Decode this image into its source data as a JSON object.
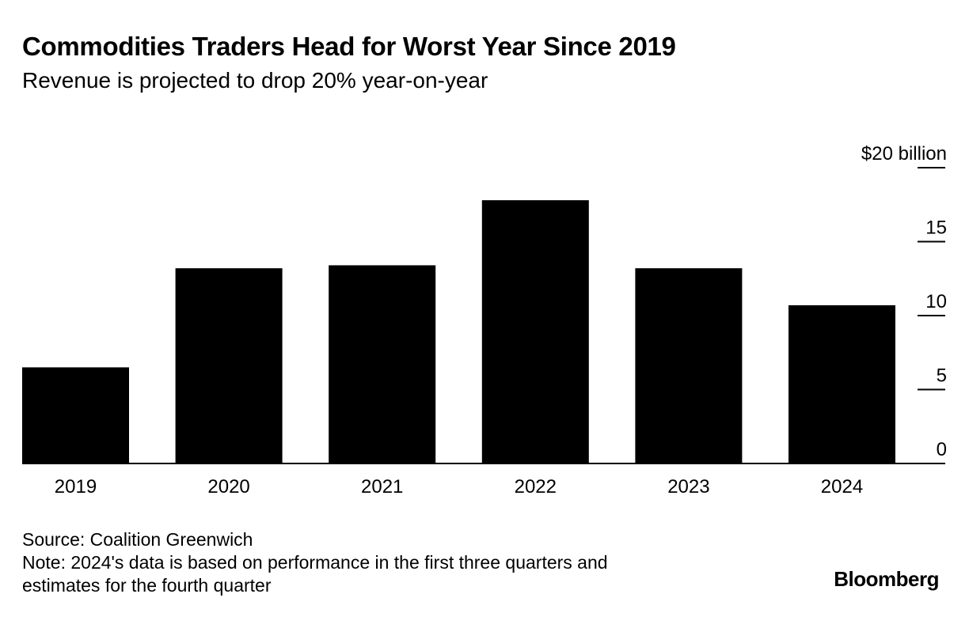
{
  "header": {
    "title": "Commodities Traders Head for Worst Year Since 2019",
    "subtitle": "Revenue is projected to drop 20% year-on-year"
  },
  "footer": {
    "source": "Source: Coalition Greenwich",
    "note_line1": "Note: 2024's data is based on performance in the first three quarters and",
    "note_line2": "estimates for the fourth quarter",
    "brand": "Bloomberg"
  },
  "colors": {
    "bar": "#000000",
    "axis": "#000000",
    "background": "#ffffff"
  },
  "chart_data": {
    "type": "bar",
    "title": "Commodities Traders Head for Worst Year Since 2019",
    "subtitle": "Revenue is projected to drop 20% year-on-year",
    "categories": [
      "2019",
      "2020",
      "2021",
      "2022",
      "2023",
      "2024"
    ],
    "values": [
      6.5,
      13.2,
      13.4,
      17.8,
      13.2,
      10.7
    ],
    "xlabel": "",
    "ylabel": "",
    "ylim": [
      0,
      20
    ],
    "yticks": [
      0,
      5,
      10,
      15,
      20
    ],
    "ytick_labels": [
      "0",
      "5",
      "10",
      "15",
      "$20 billion"
    ],
    "y_axis_side": "right",
    "grid": false,
    "legend": "none"
  }
}
